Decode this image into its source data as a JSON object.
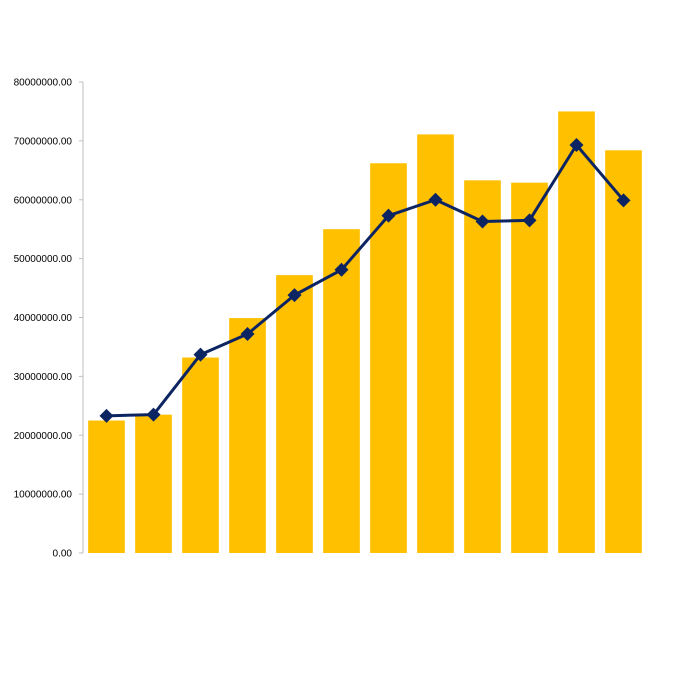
{
  "chart_data": {
    "type": "bar",
    "title": "",
    "xlabel": "",
    "ylabel": "",
    "ylim": [
      0,
      80000000
    ],
    "y_ticks": [
      "0.00",
      "10000000.00",
      "20000000.00",
      "30000000.00",
      "40000000.00",
      "50000000.00",
      "60000000.00",
      "70000000.00",
      "80000000.00"
    ],
    "grid": false,
    "legend": "none",
    "series": [
      {
        "type": "bar",
        "color": "#FFC000",
        "values": [
          22500000,
          23500000,
          33200000,
          39900000,
          47200000,
          55000000,
          66200000,
          71100000,
          63300000,
          62900000,
          75000000,
          68400000
        ]
      },
      {
        "type": "line",
        "marker": "diamond",
        "color": "#0C2461",
        "values": [
          23300000,
          23500000,
          33700000,
          37200000,
          43800000,
          48100000,
          57300000,
          60000000,
          56300000,
          56500000,
          69300000,
          59900000
        ]
      }
    ]
  }
}
